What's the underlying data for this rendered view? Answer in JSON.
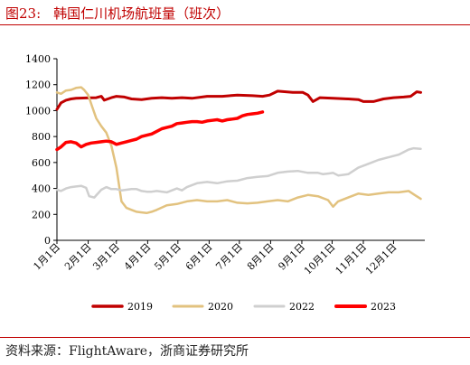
{
  "title": {
    "figure_number": "图23:",
    "text": "韩国仁川机场航班量（班次）"
  },
  "source": "资料来源：FlightAware，浙商证券研究所",
  "colors": {
    "title": "#c00000",
    "s2019": "#c00000",
    "s2020": "#e2c27f",
    "s2022": "#cfcfcf",
    "s2023": "#ff0000"
  },
  "chart_data": {
    "type": "line",
    "ylim": [
      0,
      1400
    ],
    "yticks": [
      0,
      200,
      400,
      600,
      800,
      1000,
      1200,
      1400
    ],
    "xlim": [
      1,
      366
    ],
    "x_ticks": [
      {
        "day": 1,
        "label": "1月1日"
      },
      {
        "day": 32,
        "label": "2月1日"
      },
      {
        "day": 60,
        "label": "3月1日"
      },
      {
        "day": 91,
        "label": "4月1日"
      },
      {
        "day": 121,
        "label": "5月1日"
      },
      {
        "day": 152,
        "label": "6月1日"
      },
      {
        "day": 182,
        "label": "7月1日"
      },
      {
        "day": 213,
        "label": "8月1日"
      },
      {
        "day": 244,
        "label": "9月1日"
      },
      {
        "day": 274,
        "label": "10月1日"
      },
      {
        "day": 305,
        "label": "11月1日"
      },
      {
        "day": 335,
        "label": "12月1日"
      }
    ],
    "legend_position": "bottom",
    "series": [
      {
        "name": "2019",
        "color": "#c00000",
        "width": 3,
        "x": [
          1,
          5,
          10,
          15,
          20,
          30,
          40,
          45,
          48,
          55,
          60,
          68,
          75,
          85,
          95,
          105,
          115,
          125,
          135,
          150,
          165,
          180,
          195,
          205,
          212,
          220,
          235,
          245,
          250,
          255,
          262,
          275,
          290,
          300,
          305,
          315,
          325,
          335,
          345,
          352,
          358,
          362
        ],
        "y": [
          1010,
          1060,
          1080,
          1090,
          1095,
          1098,
          1100,
          1110,
          1080,
          1100,
          1110,
          1105,
          1090,
          1085,
          1095,
          1100,
          1095,
          1100,
          1095,
          1110,
          1110,
          1120,
          1115,
          1110,
          1120,
          1150,
          1140,
          1140,
          1120,
          1070,
          1100,
          1095,
          1090,
          1085,
          1070,
          1070,
          1090,
          1100,
          1105,
          1110,
          1145,
          1140
        ]
      },
      {
        "name": "2020",
        "color": "#e2c27f",
        "width": 2.5,
        "x": [
          1,
          5,
          10,
          15,
          20,
          25,
          28,
          32,
          36,
          40,
          45,
          50,
          55,
          60,
          65,
          70,
          75,
          80,
          85,
          90,
          95,
          100,
          110,
          120,
          130,
          140,
          150,
          160,
          170,
          180,
          190,
          200,
          210,
          220,
          230,
          240,
          250,
          260,
          270,
          275,
          280,
          290,
          300,
          310,
          320,
          330,
          340,
          350,
          356,
          362
        ],
        "y": [
          1140,
          1130,
          1155,
          1160,
          1175,
          1180,
          1160,
          1120,
          1030,
          940,
          880,
          830,
          730,
          560,
          300,
          250,
          235,
          220,
          215,
          210,
          220,
          235,
          270,
          280,
          300,
          310,
          300,
          300,
          310,
          290,
          285,
          290,
          300,
          310,
          300,
          330,
          350,
          340,
          310,
          260,
          300,
          330,
          360,
          350,
          360,
          370,
          370,
          380,
          350,
          320
        ]
      },
      {
        "name": "2022",
        "color": "#cfcfcf",
        "width": 2.5,
        "x": [
          1,
          5,
          10,
          15,
          20,
          25,
          30,
          33,
          38,
          45,
          50,
          55,
          60,
          65,
          70,
          75,
          80,
          85,
          90,
          95,
          100,
          110,
          120,
          125,
          130,
          140,
          150,
          160,
          170,
          180,
          190,
          200,
          210,
          220,
          230,
          240,
          250,
          260,
          265,
          270,
          275,
          280,
          290,
          300,
          310,
          320,
          330,
          340,
          345,
          350,
          355,
          362
        ],
        "y": [
          390,
          380,
          400,
          410,
          415,
          420,
          405,
          340,
          330,
          390,
          410,
          395,
          395,
          385,
          390,
          395,
          395,
          380,
          375,
          375,
          380,
          370,
          400,
          385,
          410,
          440,
          450,
          440,
          455,
          460,
          480,
          490,
          495,
          520,
          530,
          535,
          520,
          520,
          510,
          515,
          520,
          500,
          510,
          560,
          590,
          620,
          640,
          660,
          680,
          700,
          710,
          705
        ]
      },
      {
        "name": "2023",
        "color": "#ff0000",
        "width": 3.5,
        "x": [
          1,
          5,
          10,
          15,
          20,
          25,
          30,
          35,
          40,
          45,
          50,
          55,
          60,
          65,
          70,
          75,
          80,
          85,
          90,
          95,
          100,
          105,
          110,
          115,
          120,
          125,
          130,
          135,
          140,
          145,
          150,
          155,
          160,
          165,
          170,
          175,
          180,
          185,
          190,
          195,
          200,
          205
        ],
        "y": [
          700,
          720,
          755,
          760,
          750,
          720,
          740,
          750,
          755,
          760,
          765,
          760,
          740,
          750,
          760,
          770,
          780,
          800,
          810,
          820,
          840,
          860,
          870,
          880,
          900,
          905,
          910,
          915,
          915,
          910,
          920,
          925,
          930,
          920,
          930,
          935,
          940,
          960,
          970,
          975,
          980,
          990
        ]
      }
    ]
  }
}
